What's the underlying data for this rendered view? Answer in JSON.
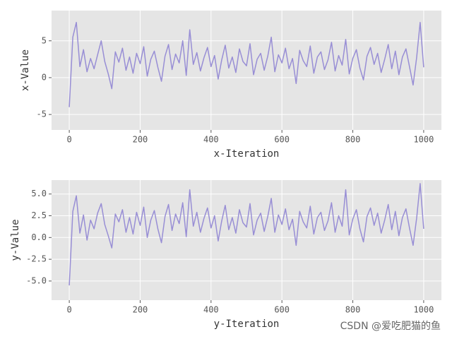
{
  "chart_data": [
    {
      "type": "line",
      "xlabel": "x-Iteration",
      "ylabel": "x-Value",
      "xlim": [
        -50,
        1050
      ],
      "ylim": [
        -7.1,
        9.1
      ],
      "xticks": [
        0,
        200,
        400,
        600,
        800,
        1000
      ],
      "yticks": [
        -5,
        0,
        5
      ],
      "grid": true,
      "x": [
        0,
        10,
        20,
        30,
        40,
        50,
        60,
        70,
        80,
        90,
        100,
        110,
        120,
        130,
        140,
        150,
        160,
        170,
        180,
        190,
        200,
        210,
        220,
        230,
        240,
        250,
        260,
        270,
        280,
        290,
        300,
        310,
        320,
        330,
        340,
        350,
        360,
        370,
        380,
        390,
        400,
        410,
        420,
        430,
        440,
        450,
        460,
        470,
        480,
        490,
        500,
        510,
        520,
        530,
        540,
        550,
        560,
        570,
        580,
        590,
        600,
        610,
        620,
        630,
        640,
        650,
        660,
        670,
        680,
        690,
        700,
        710,
        720,
        730,
        740,
        750,
        760,
        770,
        780,
        790,
        800,
        810,
        820,
        830,
        840,
        850,
        860,
        870,
        880,
        890,
        900,
        910,
        920,
        930,
        940,
        950,
        960,
        970,
        980,
        990,
        1000
      ],
      "series": [
        {
          "color": "#988ED5",
          "values": [
            -4,
            5.5,
            7.5,
            1.5,
            3.8,
            0.8,
            2.6,
            1.2,
            3.1,
            5,
            2.2,
            0.5,
            -1.5,
            3.5,
            2.1,
            4,
            1,
            2.8,
            0.6,
            3.3,
            1.9,
            4.2,
            0.2,
            2.5,
            3.6,
            1.4,
            -0.5,
            2.9,
            4.5,
            1.1,
            3.2,
            2,
            5,
            0.3,
            6.5,
            1.8,
            3.4,
            0.9,
            2.7,
            4.1,
            1.5,
            3,
            -0.2,
            2.4,
            4.4,
            1.3,
            2.8,
            0.7,
            3.9,
            2.2,
            1.6,
            4.6,
            0.4,
            2.5,
            3.3,
            1,
            2.9,
            5.5,
            0.8,
            3.1,
            2,
            4,
            1.2,
            2.6,
            -0.8,
            3.7,
            2.3,
            1.5,
            4.3,
            0.6,
            2.8,
            3.5,
            1.1,
            2.4,
            4.8,
            0.9,
            3,
            1.7,
            5.2,
            0.5,
            2.6,
            3.8,
            1.3,
            -0.3,
            2.9,
            4.1,
            1.8,
            3.3,
            0.7,
            2.5,
            4.5,
            1.2,
            3.6,
            0.4,
            2.8,
            3.9,
            1.5,
            -1,
            2.7,
            7.5,
            1.4
          ]
        }
      ]
    },
    {
      "type": "line",
      "xlabel": "y-Iteration",
      "ylabel": "y-Value",
      "xlim": [
        -50,
        1050
      ],
      "ylim": [
        -7.2,
        6.6
      ],
      "xticks": [
        0,
        200,
        400,
        600,
        800,
        1000
      ],
      "yticks": [
        {
          "value": -5,
          "label": "-5.0"
        },
        {
          "value": -2.5,
          "label": "-2.5"
        },
        {
          "value": 0,
          "label": "0.0"
        },
        {
          "value": 2.5,
          "label": "2.5"
        },
        {
          "value": 5,
          "label": "5.0"
        }
      ],
      "grid": true,
      "x": [
        0,
        10,
        20,
        30,
        40,
        50,
        60,
        70,
        80,
        90,
        100,
        110,
        120,
        130,
        140,
        150,
        160,
        170,
        180,
        190,
        200,
        210,
        220,
        230,
        240,
        250,
        260,
        270,
        280,
        290,
        300,
        310,
        320,
        330,
        340,
        350,
        360,
        370,
        380,
        390,
        400,
        410,
        420,
        430,
        440,
        450,
        460,
        470,
        480,
        490,
        500,
        510,
        520,
        530,
        540,
        550,
        560,
        570,
        580,
        590,
        600,
        610,
        620,
        630,
        640,
        650,
        660,
        670,
        680,
        690,
        700,
        710,
        720,
        730,
        740,
        750,
        760,
        770,
        780,
        790,
        800,
        810,
        820,
        830,
        840,
        850,
        860,
        870,
        880,
        890,
        900,
        910,
        920,
        930,
        940,
        950,
        960,
        970,
        980,
        990,
        1000
      ],
      "series": [
        {
          "color": "#988ED5",
          "values": [
            -5.5,
            3,
            4.8,
            0.5,
            2.6,
            -0.3,
            2,
            1,
            2.8,
            3.9,
            1.5,
            0.2,
            -1.2,
            2.7,
            1.8,
            3.2,
            0.6,
            2.3,
            0.4,
            2.9,
            1.4,
            3.5,
            0,
            2,
            3.1,
            1,
            -0.6,
            2.4,
            3.8,
            0.8,
            2.7,
            1.6,
            4,
            0.1,
            5.5,
            1.3,
            2.9,
            0.6,
            2.2,
            3.4,
            1.1,
            2.5,
            -0.4,
            1.9,
            3.7,
            0.9,
            2.3,
            0.5,
            3.2,
            1.7,
            1.2,
            3.9,
            0.3,
            2,
            2.8,
            0.7,
            2.4,
            4.5,
            0.6,
            2.6,
            1.5,
            3.3,
            0.9,
            2.1,
            -0.9,
            3,
            1.8,
            1.1,
            3.6,
            0.4,
            2.3,
            2.9,
            0.8,
            1.9,
            4,
            0.6,
            2.5,
            1.3,
            5.5,
            0.3,
            2.1,
            3.2,
            1,
            -0.5,
            2.4,
            3.4,
            1.4,
            2.8,
            0.5,
            2,
            3.8,
            0.9,
            3,
            0.2,
            2.3,
            3.3,
            1.1,
            -0.9,
            2.2,
            6.2,
            1
          ]
        }
      ]
    }
  ],
  "watermark": "CSDN @爱吃肥猫的鱼"
}
